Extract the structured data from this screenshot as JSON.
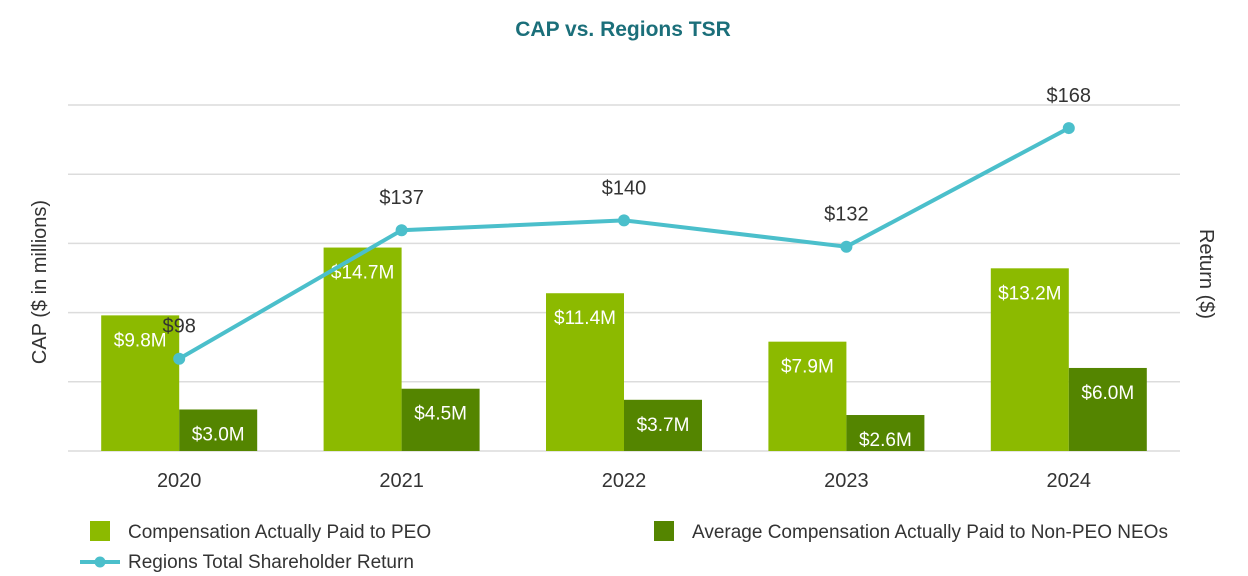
{
  "chart_data": {
    "type": "bar+line",
    "title": "CAP vs. Regions TSR",
    "ylabel": "CAP ($ in millions)",
    "y2label": "Return ($)",
    "categories": [
      "2020",
      "2021",
      "2022",
      "2023",
      "2024"
    ],
    "ylim": [
      0,
      25
    ],
    "y2lim": [
      70,
      175
    ],
    "grid": true,
    "series": [
      {
        "name": "Compensation Actually Paid to PEO",
        "type": "bar",
        "axis": "left",
        "color": "#8cba00",
        "values": [
          9.8,
          14.7,
          11.4,
          7.9,
          13.2
        ],
        "labels": [
          "$9.8M",
          "$14.7M",
          "$11.4M",
          "$7.9M",
          "$13.2M"
        ]
      },
      {
        "name": "Average Compensation Actually Paid to Non-PEO NEOs",
        "type": "bar",
        "axis": "left",
        "color": "#548500",
        "values": [
          3.0,
          4.5,
          3.7,
          2.6,
          6.0
        ],
        "labels": [
          "$3.0M",
          "$4.5M",
          "$3.7M",
          "$2.6M",
          "$6.0M"
        ]
      },
      {
        "name": "Regions Total Shareholder Return",
        "type": "line",
        "axis": "right",
        "color": "#4bbfcb",
        "values": [
          98,
          137,
          140,
          132,
          168
        ],
        "labels": [
          "$98",
          "$137",
          "$140",
          "$132",
          "$168"
        ]
      }
    ],
    "legend_position": "bottom"
  }
}
